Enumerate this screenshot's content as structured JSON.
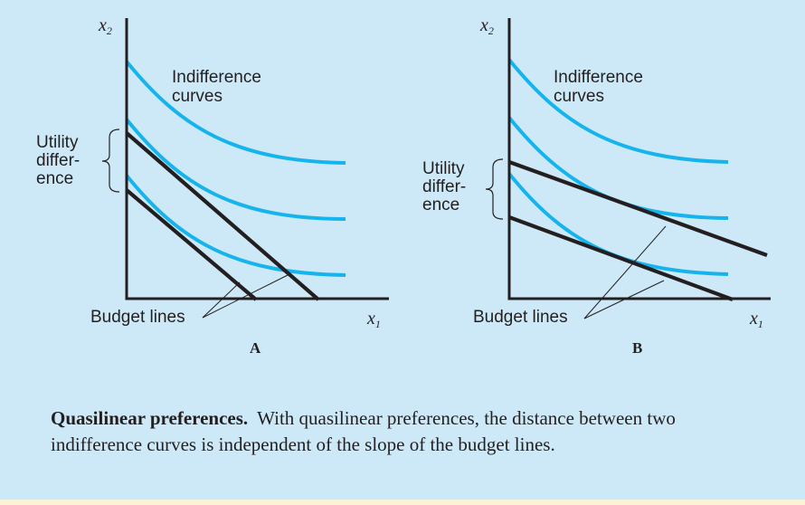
{
  "panel_a": {
    "label": "A",
    "x_axis": {
      "base": "x",
      "sub": "1"
    },
    "y_axis": {
      "base": "x",
      "sub": "2"
    },
    "curves_label": [
      "Indifference",
      "curves"
    ],
    "utility_label": [
      "Utility",
      "differ-",
      "ence"
    ],
    "budget_label": "Budget lines"
  },
  "panel_b": {
    "label": "B",
    "x_axis": {
      "base": "x",
      "sub": "1"
    },
    "y_axis": {
      "base": "x",
      "sub": "2"
    },
    "curves_label": [
      "Indifference",
      "curves"
    ],
    "utility_label": [
      "Utility",
      "differ-",
      "ence"
    ],
    "budget_label": "Budget lines"
  },
  "caption": {
    "title": "Quasilinear preferences.",
    "text": "With quasilinear preferences, the distance between two indifference curves is independent of the slope of the budget lines."
  },
  "colors": {
    "background": "#cde9f7",
    "curves": "#16b4ec",
    "lines": "#231f20"
  }
}
